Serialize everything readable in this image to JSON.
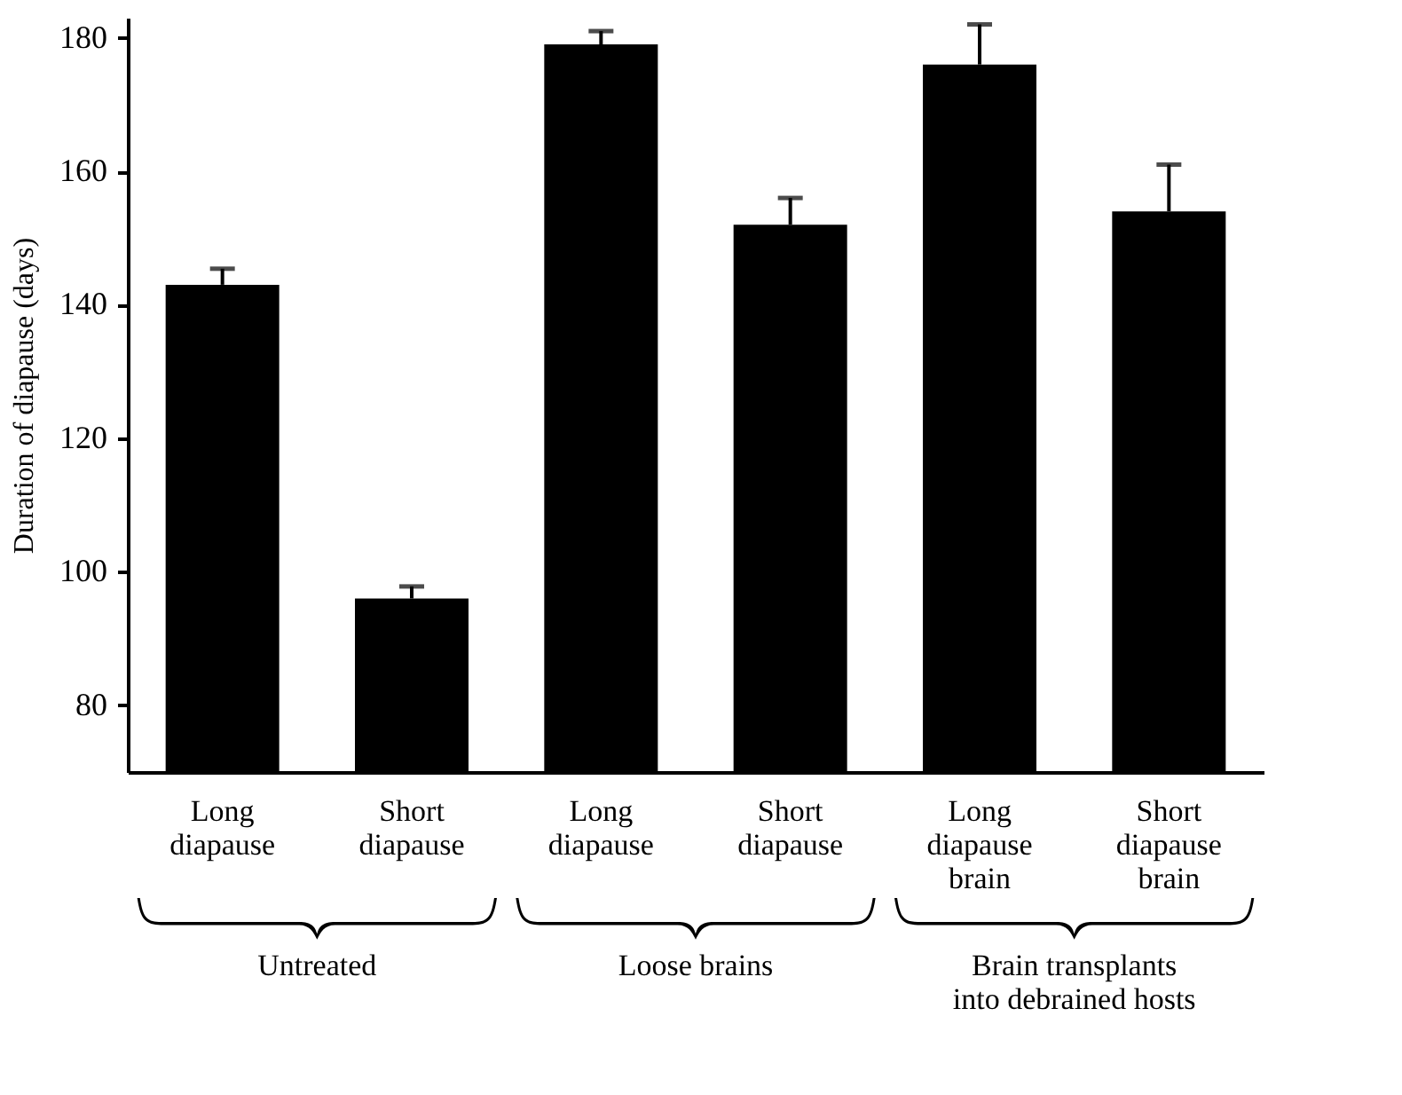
{
  "chart_data": {
    "type": "bar",
    "ylabel": "Duration of diapause (days)",
    "categories": [
      "Long diapause",
      "Short diapause",
      "Long diapause",
      "Short diapause",
      "Long diapause brain",
      "Short diapause brain"
    ],
    "values": [
      143,
      96,
      179,
      152,
      176,
      154
    ],
    "errors": [
      [
        143,
        145.4
      ],
      [
        96,
        97.8
      ],
      [
        179,
        181
      ],
      [
        152,
        156
      ],
      [
        176,
        182
      ],
      [
        154,
        161
      ]
    ],
    "color": "#000000",
    "ylim": [
      70,
      183
    ],
    "yticks": [
      80,
      100,
      120,
      140,
      160,
      180
    ],
    "grid": false,
    "annotations": [
      "Untreated",
      "Loose brains",
      "Brain transplants\ninto debrained hosts"
    ]
  }
}
